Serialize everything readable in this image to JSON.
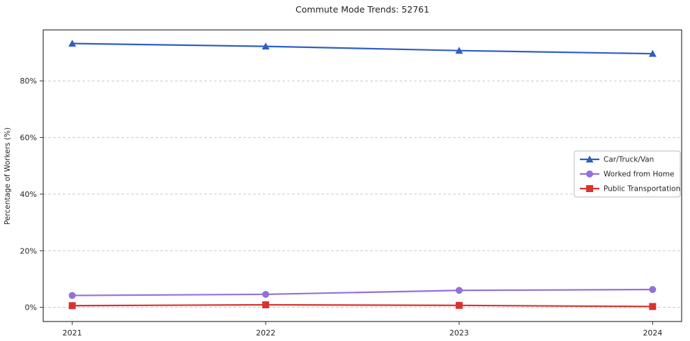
{
  "chart_data": {
    "type": "line",
    "title": "Commute Mode Trends: 52761",
    "xlabel": "",
    "ylabel": "Percentage of Workers (%)",
    "x": [
      2021,
      2022,
      2023,
      2024
    ],
    "x_labels": [
      "2021",
      "2022",
      "2023",
      "2024"
    ],
    "series": [
      {
        "name": "Car/Truck/Van",
        "values": [
          93.2,
          92.2,
          90.7,
          89.6
        ],
        "color": "#2f5ec4",
        "marker": "triangle"
      },
      {
        "name": "Worked from Home",
        "values": [
          4.2,
          4.6,
          6.0,
          6.3
        ],
        "color": "#9370db",
        "marker": "circle"
      },
      {
        "name": "Public Transportation",
        "values": [
          0.6,
          0.9,
          0.7,
          0.3
        ],
        "color": "#d9332e",
        "marker": "square"
      }
    ],
    "ylim": [
      -5,
      98
    ],
    "yticks": [
      0,
      20,
      40,
      60,
      80
    ],
    "ytick_suffix": "%",
    "grid": true,
    "legend": {
      "position": "middle-right",
      "entries": [
        "Car/Truck/Van",
        "Worked from Home",
        "Public Transportation"
      ]
    }
  },
  "colors": {
    "grid": "#c9c9c9",
    "frame": "#333333",
    "tick_text": "#262626",
    "legend_border": "#b9b9b9",
    "legend_bg": "#ffffff"
  }
}
